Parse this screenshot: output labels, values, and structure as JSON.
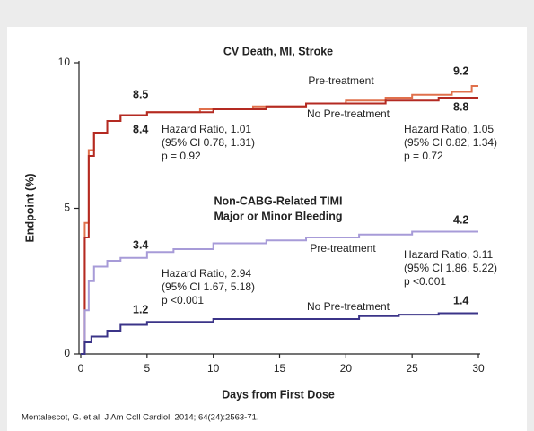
{
  "chart_data": {
    "type": "step",
    "title": "CV Death, MI, Stroke",
    "x_label": "Days from First Dose",
    "y_label": "Endpoint (%)",
    "source": "Montalescot, G. et al. J Am Coll Cardiol. 2014; 64(24):2563-71.",
    "xlim": [
      0,
      30
    ],
    "ylim": [
      0,
      10
    ],
    "xticks": [
      0,
      5,
      10,
      15,
      20,
      25,
      30
    ],
    "yticks": [
      0,
      5,
      10
    ],
    "series": [
      {
        "name": "Pre-treatment",
        "color": "#e0704c",
        "x": [
          0,
          0.3,
          0.6,
          1,
          2,
          3,
          5,
          9,
          13,
          17,
          20,
          23,
          25,
          28,
          29.5,
          30
        ],
        "values": [
          0,
          4.5,
          7,
          7.6,
          8.0,
          8.2,
          8.3,
          8.4,
          8.5,
          8.6,
          8.7,
          8.8,
          8.9,
          9.0,
          9.2,
          9.2
        ]
      },
      {
        "name": "No Pre-treatment",
        "color": "#b42a22",
        "x": [
          0,
          0.3,
          0.6,
          1,
          2,
          3,
          5,
          10,
          14,
          17,
          20,
          23,
          27,
          30
        ],
        "values": [
          0,
          4.0,
          6.8,
          7.6,
          8.0,
          8.2,
          8.3,
          8.4,
          8.5,
          8.6,
          8.6,
          8.7,
          8.8,
          8.8
        ]
      },
      {
        "name": "Pre-treatment",
        "color": "#a79bd8",
        "x": [
          0,
          0.3,
          0.6,
          1,
          2,
          3,
          5,
          7,
          10,
          14,
          17,
          21,
          25,
          30
        ],
        "values": [
          0,
          1.5,
          2.5,
          3.0,
          3.2,
          3.3,
          3.5,
          3.6,
          3.8,
          3.9,
          4.0,
          4.1,
          4.2,
          4.2
        ]
      },
      {
        "name": "No Pre-treatment",
        "color": "#3b3488",
        "x": [
          0,
          0.3,
          0.8,
          2,
          3,
          5,
          10,
          18,
          21,
          24,
          27,
          30
        ],
        "values": [
          0,
          0.4,
          0.6,
          0.8,
          1.0,
          1.1,
          1.2,
          1.2,
          1.3,
          1.35,
          1.4,
          1.4
        ]
      }
    ],
    "annotations": [
      "8.5",
      "8.4",
      "9.2",
      "8.8",
      "Hazard Ratio, 1.01",
      "(95% CI 0.78, 1.31)",
      "p = 0.92",
      "Hazard Ratio, 1.05",
      "(95% CI 0.82, 1.34)",
      "p = 0.72",
      "Non-CABG-Related TIMI",
      "Major or Minor Bleeding",
      "4.2",
      "3.4",
      "Hazard Ratio, 3.11",
      "(95% CI 1.86, 5.22)",
      "p <0.001",
      "Hazard Ratio, 2.94",
      "(95% CI 1.67, 5.18)",
      "p <0.001",
      "1.2",
      "1.4"
    ]
  }
}
